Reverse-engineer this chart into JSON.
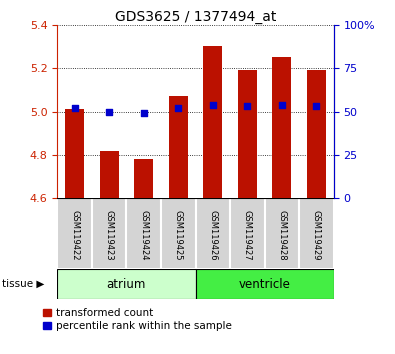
{
  "title": "GDS3625 / 1377494_at",
  "samples": [
    "GSM119422",
    "GSM119423",
    "GSM119424",
    "GSM119425",
    "GSM119426",
    "GSM119427",
    "GSM119428",
    "GSM119429"
  ],
  "transformed_counts": [
    5.01,
    4.82,
    4.78,
    5.07,
    5.3,
    5.19,
    5.25,
    5.19
  ],
  "percentile_ranks": [
    52,
    50,
    49,
    52,
    54,
    53,
    54,
    53
  ],
  "ylim_left": [
    4.6,
    5.4
  ],
  "ylim_right": [
    0,
    100
  ],
  "bar_base": 4.6,
  "bar_color": "#bb1100",
  "dot_color": "#0000cc",
  "tissue_colors_atrium": "#ccffcc",
  "tissue_colors_ventricle": "#44ee44",
  "bg_color": "#ffffff",
  "plot_bg": "#ffffff",
  "left_axis_color": "#cc2200",
  "right_axis_color": "#0000cc",
  "yticks_left": [
    4.6,
    4.8,
    5.0,
    5.2,
    5.4
  ],
  "yticks_right": [
    0,
    25,
    50,
    75,
    100
  ],
  "figsize": [
    3.95,
    3.54
  ],
  "dpi": 100
}
